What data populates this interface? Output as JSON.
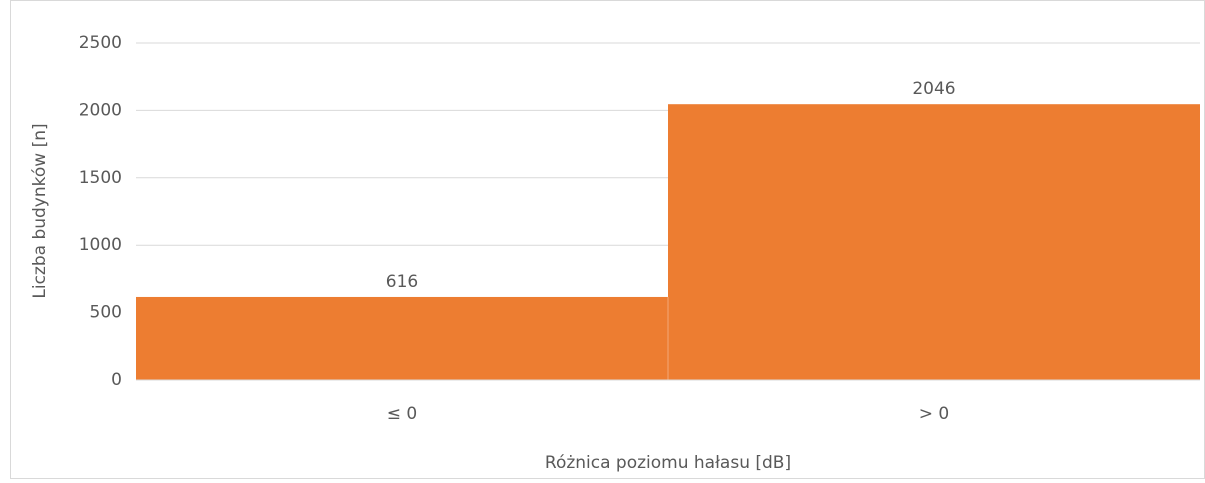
{
  "chart_data": {
    "type": "bar",
    "categories": [
      "≤ 0",
      "> 0"
    ],
    "values": [
      616,
      2046
    ],
    "color": "#ed7d31",
    "xlabel": "Różnica poziomu hałasu [dB]",
    "ylabel": "Liczba budynków [n]",
    "ylim": [
      0,
      2500
    ],
    "yticks": [
      0,
      500,
      1000,
      1500,
      2000,
      2500
    ],
    "grid": true
  }
}
